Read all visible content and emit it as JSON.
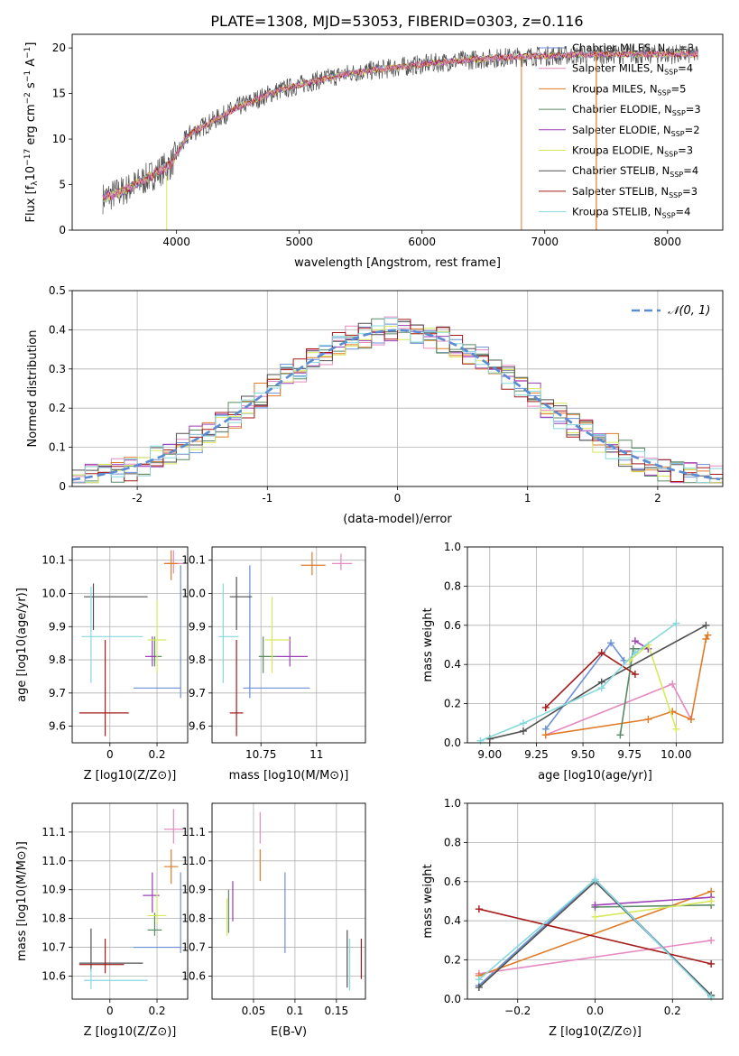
{
  "figure": {
    "title": "PLATE=1308, MJD=53053, FIBERID=0303, z=0.116"
  },
  "colors": {
    "chabrier_miles": "#6b8fd6",
    "salpeter_miles": "#e8795f",
    "kroupa_miles": "#e07b28",
    "chabrier_elodie": "#5a8a64",
    "salpeter_elodie": "#9b3fb5",
    "kroupa_elodie": "#d8e85c",
    "chabrier_stelib": "#505050",
    "salpeter_stelib": "#a51a1a",
    "kroupa_stelib": "#86d8dc",
    "kroupa_miles_pink": "#e58ac0"
  },
  "legend_spectrum": [
    {
      "label": "Chabrier MILES, N",
      "sub": "SSP",
      "suffix": "=3",
      "color": "#6b8fd6"
    },
    {
      "label": "Salpeter MILES, N",
      "sub": "SSP",
      "suffix": "=4",
      "color": "#e58ac0"
    },
    {
      "label": "Kroupa MILES, N",
      "sub": "SSP",
      "suffix": "=5",
      "color": "#e07b28"
    },
    {
      "label": "Chabrier ELODIE, N",
      "sub": "SSP",
      "suffix": "=3",
      "color": "#5a8a64"
    },
    {
      "label": "Salpeter ELODIE, N",
      "sub": "SSP",
      "suffix": "=2",
      "color": "#9b3fb5"
    },
    {
      "label": "Kroupa ELODIE, N",
      "sub": "SSP",
      "suffix": "=3",
      "color": "#d8e85c"
    },
    {
      "label": "Chabrier STELIB, N",
      "sub": "SSP",
      "suffix": "=4",
      "color": "#505050"
    },
    {
      "label": "Salpeter STELIB, N",
      "sub": "SSP",
      "suffix": "=3",
      "color": "#a51a1a"
    },
    {
      "label": "Kroupa STELIB, N",
      "sub": "SSP",
      "suffix": "=4",
      "color": "#86d8dc"
    }
  ],
  "legend_hist": {
    "label": "𝒩(0, 1)"
  },
  "chart_data": [
    {
      "id": "spectrum",
      "type": "line",
      "xlabel": "wavelength [Angstrom, rest frame]",
      "ylabel": "Flux [f_λ 10^-17 erg cm^-2 s^-1 A^-1]",
      "xlim": [
        3150,
        8450
      ],
      "ylim": [
        0,
        21.5
      ],
      "xticks": [
        4000,
        5000,
        6000,
        7000,
        8000
      ],
      "yticks": [
        0,
        5,
        10,
        15,
        20
      ],
      "continuum": {
        "x": [
          3400,
          3600,
          3800,
          3950,
          4100,
          4300,
          4500,
          4800,
          5100,
          5400,
          5700,
          6000,
          6300,
          6600,
          6900,
          7200,
          7500,
          7800,
          8200
        ],
        "y": [
          3.5,
          4.5,
          6.0,
          7.2,
          10.5,
          12.0,
          13.5,
          15.2,
          16.3,
          17.2,
          17.7,
          18.2,
          18.6,
          18.9,
          19.1,
          19.2,
          19.3,
          19.3,
          19.3
        ]
      }
    },
    {
      "id": "residual_hist",
      "type": "line",
      "xlabel": "(data-model)/error",
      "ylabel": "Normed distribution",
      "xlim": [
        -2.5,
        2.5
      ],
      "ylim": [
        0,
        0.5
      ],
      "xticks": [
        -2,
        -1,
        0,
        1,
        2
      ],
      "yticks": [
        0.0,
        0.1,
        0.2,
        0.3,
        0.4,
        0.5
      ],
      "gaussian": {
        "mean": 0,
        "sigma": 1
      }
    },
    {
      "id": "age_vs_Z",
      "type": "scatter",
      "xlabel": "Z [log10(Z/Z⊙)]",
      "ylabel": "age [log10(age/yr)]",
      "xlim": [
        -0.16,
        0.33
      ],
      "ylim": [
        9.55,
        10.14
      ],
      "xticks": [
        0.0,
        0.2
      ],
      "yticks": [
        9.6,
        9.7,
        9.8,
        9.9,
        10.0,
        10.1
      ],
      "points": [
        {
          "x": 0.3,
          "y": 9.715,
          "xerr": [
            0.2,
            0.0
          ],
          "yerr": [
            0.03,
            0.37
          ],
          "color": "#6b8fd6"
        },
        {
          "x": 0.27,
          "y": 10.09,
          "xerr": [
            0.04,
            0.04
          ],
          "yerr": [
            0.03,
            0.04
          ],
          "color": "#e58ac0"
        },
        {
          "x": 0.26,
          "y": 10.09,
          "xerr": [
            0.03,
            0.03
          ],
          "yerr": [
            0.05,
            0.04
          ],
          "color": "#e07b28"
        },
        {
          "x": 0.19,
          "y": 9.81,
          "xerr": [
            0.02,
            0.03
          ],
          "yerr": [
            0.03,
            0.06
          ],
          "color": "#5a8a64"
        },
        {
          "x": 0.18,
          "y": 9.81,
          "xerr": [
            0.03,
            0.02
          ],
          "yerr": [
            0.03,
            0.06
          ],
          "color": "#9b3fb5"
        },
        {
          "x": 0.2,
          "y": 9.86,
          "xerr": [
            0.04,
            0.04
          ],
          "yerr": [
            0.1,
            0.12
          ],
          "color": "#d8e85c"
        },
        {
          "x": -0.07,
          "y": 9.99,
          "xerr": [
            0.04,
            0.23
          ],
          "yerr": [
            0.1,
            0.04
          ],
          "color": "#505050"
        },
        {
          "x": -0.02,
          "y": 9.64,
          "xerr": [
            0.11,
            0.1
          ],
          "yerr": [
            0.07,
            0.22
          ],
          "color": "#a51a1a"
        },
        {
          "x": -0.08,
          "y": 9.87,
          "xerr": [
            0.04,
            0.22
          ],
          "yerr": [
            0.14,
            0.15
          ],
          "color": "#86d8dc"
        }
      ]
    },
    {
      "id": "age_vs_mass",
      "type": "scatter",
      "xlabel": "mass [log10(M/M⊙)]",
      "ylabel": "",
      "xlim": [
        10.53,
        11.22
      ],
      "ylim": [
        9.55,
        10.14
      ],
      "xticks": [
        10.75,
        11.0
      ],
      "yticks": [
        9.6,
        9.7,
        9.8,
        9.9,
        10.0,
        10.1
      ],
      "points": [
        {
          "x": 10.7,
          "y": 9.715,
          "xerr": [
            0.03,
            0.27
          ],
          "yerr": [
            0.03,
            0.37
          ],
          "color": "#6b8fd6"
        },
        {
          "x": 11.11,
          "y": 10.09,
          "xerr": [
            0.04,
            0.05
          ],
          "yerr": [
            0.02,
            0.03
          ],
          "color": "#e58ac0"
        },
        {
          "x": 10.98,
          "y": 10.085,
          "xerr": [
            0.05,
            0.06
          ],
          "yerr": [
            0.03,
            0.04
          ],
          "color": "#e07b28"
        },
        {
          "x": 10.76,
          "y": 9.81,
          "xerr": [
            0.02,
            0.06
          ],
          "yerr": [
            0.05,
            0.06
          ],
          "color": "#5a8a64"
        },
        {
          "x": 10.88,
          "y": 9.81,
          "xerr": [
            0.06,
            0.08
          ],
          "yerr": [
            0.03,
            0.06
          ],
          "color": "#9b3fb5"
        },
        {
          "x": 10.8,
          "y": 9.86,
          "xerr": [
            0.03,
            0.08
          ],
          "yerr": [
            0.1,
            0.13
          ],
          "color": "#d8e85c"
        },
        {
          "x": 10.64,
          "y": 9.99,
          "xerr": [
            0.03,
            0.07
          ],
          "yerr": [
            0.1,
            0.06
          ],
          "color": "#505050"
        },
        {
          "x": 10.64,
          "y": 9.64,
          "xerr": [
            0.03,
            0.03
          ],
          "yerr": [
            0.07,
            0.22
          ],
          "color": "#a51a1a"
        },
        {
          "x": 10.58,
          "y": 9.87,
          "xerr": [
            0.02,
            0.07
          ],
          "yerr": [
            0.14,
            0.16
          ],
          "color": "#86d8dc"
        }
      ]
    },
    {
      "id": "weight_vs_age",
      "type": "line",
      "xlabel": "age [log10(age/yr)]",
      "ylabel": "mass weight",
      "xlim": [
        8.88,
        10.25
      ],
      "ylim": [
        0,
        1
      ],
      "xticks": [
        9.0,
        9.25,
        9.5,
        9.75,
        10.0
      ],
      "xticklabels": [
        "9.00",
        "9.25",
        "9.50",
        "9.75",
        "10.00"
      ],
      "yticks": [
        0.0,
        0.2,
        0.4,
        0.6,
        0.8,
        1.0
      ],
      "series": [
        {
          "color": "#6b8fd6",
          "x": [
            9.3,
            9.65,
            9.72
          ],
          "y": [
            0.07,
            0.51,
            0.42
          ]
        },
        {
          "color": "#e58ac0",
          "x": [
            9.3,
            9.98,
            10.08
          ],
          "y": [
            0.04,
            0.3,
            0.12
          ]
        },
        {
          "color": "#e07b28",
          "x": [
            9.3,
            9.85,
            9.98,
            10.08,
            10.16,
            10.17
          ],
          "y": [
            0.04,
            0.12,
            0.16,
            0.12,
            0.53,
            0.55
          ]
        },
        {
          "color": "#5a8a64",
          "x": [
            9.7,
            9.77,
            9.85
          ],
          "y": [
            0.04,
            0.48,
            0.48
          ]
        },
        {
          "color": "#9b3fb5",
          "x": [
            9.78,
            9.85
          ],
          "y": [
            0.52,
            0.48
          ]
        },
        {
          "color": "#d8e85c",
          "x": [
            9.75,
            9.85,
            10.0
          ],
          "y": [
            0.42,
            0.5,
            0.07
          ]
        },
        {
          "color": "#505050",
          "x": [
            9.0,
            9.18,
            9.6,
            10.16
          ],
          "y": [
            0.02,
            0.06,
            0.31,
            0.6
          ]
        },
        {
          "color": "#a51a1a",
          "x": [
            9.3,
            9.6,
            9.78
          ],
          "y": [
            0.18,
            0.46,
            0.35
          ]
        },
        {
          "color": "#86d8dc",
          "x": [
            8.95,
            9.18,
            9.6,
            9.78,
            10.0
          ],
          "y": [
            0.01,
            0.1,
            0.28,
            0.46,
            0.61
          ]
        }
      ]
    },
    {
      "id": "mass_vs_Z",
      "type": "scatter",
      "xlabel": "Z [log10(Z/Z⊙)]",
      "ylabel": "mass [log10(M/M⊙)]",
      "xlim": [
        -0.16,
        0.33
      ],
      "ylim": [
        10.52,
        11.2
      ],
      "xticks": [
        0.0,
        0.2
      ],
      "yticks": [
        10.6,
        10.7,
        10.8,
        10.9,
        11.0,
        11.1
      ],
      "points": [
        {
          "x": 0.3,
          "y": 10.7,
          "xerr": [
            0.2,
            0.0
          ],
          "yerr": [
            0.02,
            0.26
          ],
          "color": "#6b8fd6"
        },
        {
          "x": 0.27,
          "y": 11.11,
          "xerr": [
            0.04,
            0.04
          ],
          "yerr": [
            0.05,
            0.07
          ],
          "color": "#e58ac0"
        },
        {
          "x": 0.26,
          "y": 10.98,
          "xerr": [
            0.03,
            0.03
          ],
          "yerr": [
            0.06,
            0.06
          ],
          "color": "#e07b28"
        },
        {
          "x": 0.19,
          "y": 10.76,
          "xerr": [
            0.03,
            0.03
          ],
          "yerr": [
            0.02,
            0.06
          ],
          "color": "#5a8a64"
        },
        {
          "x": 0.18,
          "y": 10.88,
          "xerr": [
            0.04,
            0.03
          ],
          "yerr": [
            0.06,
            0.08
          ],
          "color": "#9b3fb5"
        },
        {
          "x": 0.2,
          "y": 10.81,
          "xerr": [
            0.04,
            0.04
          ],
          "yerr": [
            0.03,
            0.08
          ],
          "color": "#d8e85c"
        },
        {
          "x": -0.08,
          "y": 10.645,
          "xerr": [
            0.05,
            0.22
          ],
          "yerr": [
            0.03,
            0.12
          ],
          "color": "#505050"
        },
        {
          "x": -0.02,
          "y": 10.64,
          "xerr": [
            0.11,
            0.08
          ],
          "yerr": [
            0.03,
            0.09
          ],
          "color": "#a51a1a"
        },
        {
          "x": -0.08,
          "y": 10.585,
          "xerr": [
            0.03,
            0.24
          ],
          "yerr": [
            0.03,
            0.04
          ],
          "color": "#86d8dc"
        }
      ]
    },
    {
      "id": "mass_vs_ebv",
      "type": "scatter",
      "xlabel": "E(B-V)",
      "ylabel": "",
      "xlim": [
        0.0,
        0.185
      ],
      "ylim": [
        10.52,
        11.2
      ],
      "xticks": [
        0.05,
        0.1,
        0.15
      ],
      "yticks": [
        10.6,
        10.7,
        10.8,
        10.9,
        11.0,
        11.1
      ],
      "points": [
        {
          "x": 0.088,
          "y": 10.82,
          "yerr": [
            0.14,
            0.14
          ],
          "color": "#6b8fd6"
        },
        {
          "x": 0.058,
          "y": 11.11,
          "yerr": [
            0.05,
            0.06
          ],
          "color": "#e58ac0"
        },
        {
          "x": 0.058,
          "y": 10.99,
          "yerr": [
            0.06,
            0.05
          ],
          "color": "#e07b28"
        },
        {
          "x": 0.02,
          "y": 10.82,
          "yerr": [
            0.07,
            0.08
          ],
          "color": "#5a8a64"
        },
        {
          "x": 0.025,
          "y": 10.86,
          "yerr": [
            0.07,
            0.07
          ],
          "color": "#9b3fb5"
        },
        {
          "x": 0.018,
          "y": 10.81,
          "yerr": [
            0.07,
            0.06
          ],
          "color": "#d8e85c"
        },
        {
          "x": 0.163,
          "y": 10.66,
          "yerr": [
            0.1,
            0.1
          ],
          "color": "#505050"
        },
        {
          "x": 0.18,
          "y": 10.66,
          "yerr": [
            0.07,
            0.07
          ],
          "color": "#a51a1a"
        },
        {
          "x": 0.166,
          "y": 10.64,
          "yerr": [
            0.09,
            0.09
          ],
          "color": "#86d8dc"
        }
      ]
    },
    {
      "id": "weight_vs_Z",
      "type": "line",
      "xlabel": "Z [log10(Z/Z⊙)]",
      "ylabel": "mass weight",
      "xlim": [
        -0.33,
        0.33
      ],
      "ylim": [
        0,
        1
      ],
      "xticks": [
        -0.2,
        0.0,
        0.2
      ],
      "xticklabels": [
        "−0.2",
        "0.0",
        "0.2"
      ],
      "yticks": [
        0.0,
        0.2,
        0.4,
        0.6,
        0.8,
        1.0
      ],
      "series": [
        {
          "color": "#6b8fd6",
          "x": [
            -0.3,
            0.0,
            0.3
          ],
          "y": [
            0.07,
            0.61,
            0.02
          ]
        },
        {
          "color": "#e58ac0",
          "x": [
            -0.3,
            0.3
          ],
          "y": [
            0.13,
            0.3
          ]
        },
        {
          "color": "#e07b28",
          "x": [
            -0.3,
            0.3
          ],
          "y": [
            0.12,
            0.55
          ]
        },
        {
          "color": "#5a8a64",
          "x": [
            0.0,
            0.3
          ],
          "y": [
            0.47,
            0.48
          ]
        },
        {
          "color": "#9b3fb5",
          "x": [
            0.0,
            0.3
          ],
          "y": [
            0.48,
            0.52
          ]
        },
        {
          "color": "#d8e85c",
          "x": [
            0.0,
            0.3
          ],
          "y": [
            0.42,
            0.5
          ]
        },
        {
          "color": "#505050",
          "x": [
            -0.3,
            0.0,
            0.3
          ],
          "y": [
            0.06,
            0.6,
            0.02
          ]
        },
        {
          "color": "#a51a1a",
          "x": [
            -0.3,
            0.3
          ],
          "y": [
            0.46,
            0.18
          ]
        },
        {
          "color": "#86d8dc",
          "x": [
            -0.3,
            0.0,
            0.3
          ],
          "y": [
            0.1,
            0.61,
            0.01
          ]
        }
      ]
    }
  ]
}
